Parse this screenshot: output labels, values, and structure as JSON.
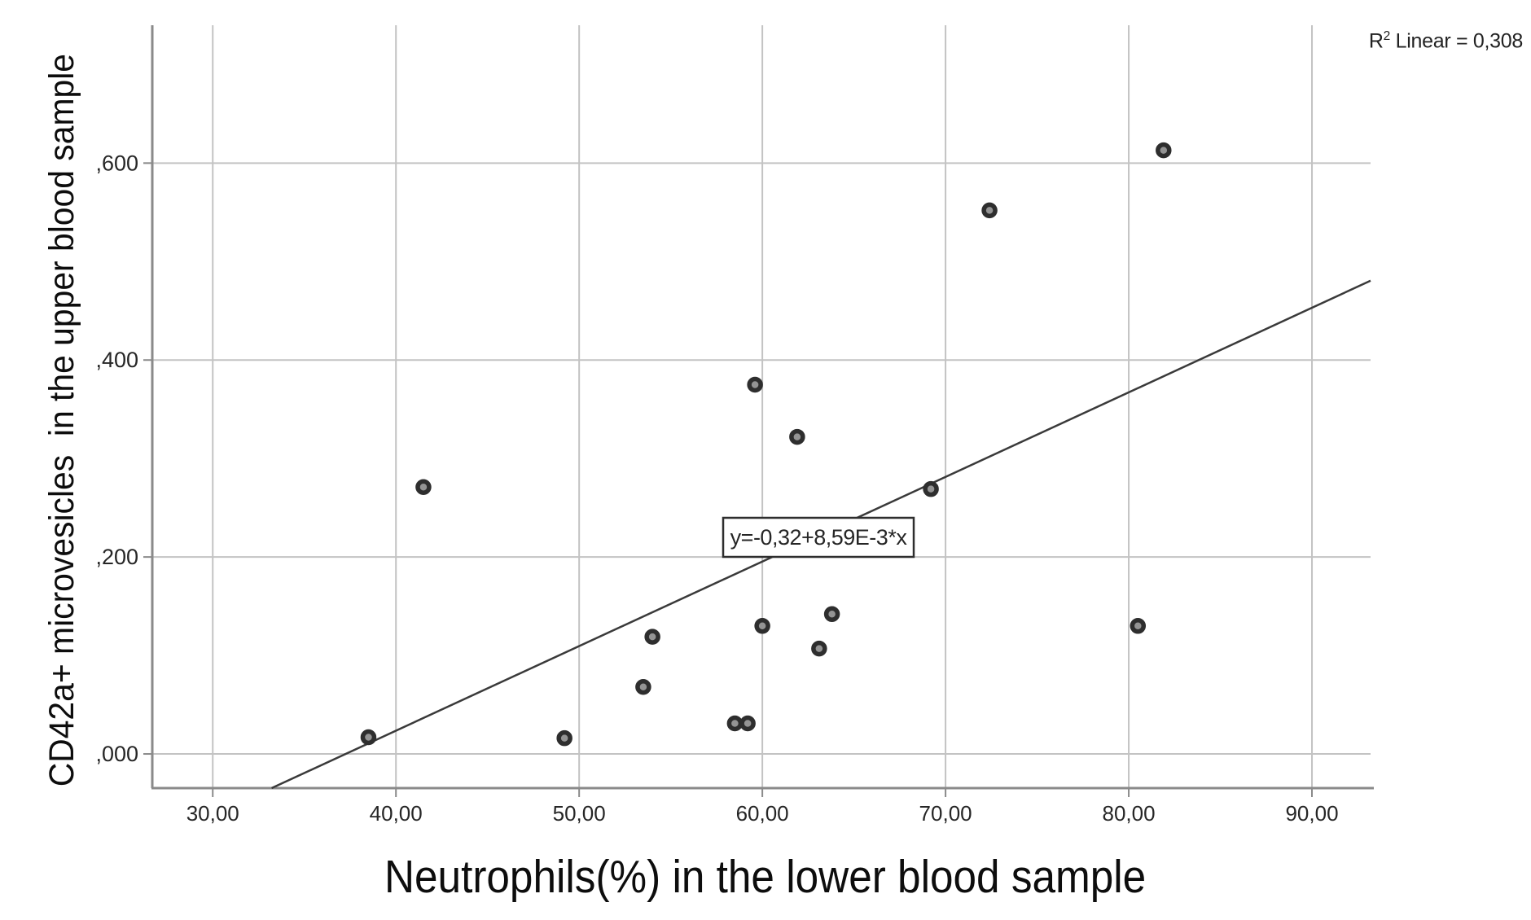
{
  "chart_data": {
    "type": "scatter",
    "title": "",
    "xlabel": "Neutrophils(%) in the lower blood sample",
    "ylabel": "CD42a+ microvesicles  in the upper blood sample",
    "x_ticks": [
      30,
      40,
      50,
      60,
      70,
      80,
      90
    ],
    "x_tick_labels": [
      "30,00",
      "40,00",
      "50,00",
      "60,00",
      "70,00",
      "80,00",
      "90,00"
    ],
    "y_ticks": [
      0.0,
      0.2,
      0.4,
      0.6
    ],
    "y_tick_labels": [
      ",000",
      ",200",
      ",400",
      ",600"
    ],
    "xlim": [
      26.7,
      93.2
    ],
    "ylim": [
      -0.0347,
      0.74
    ],
    "grid": true,
    "legend": "none",
    "points": [
      {
        "x": 38.5,
        "y": 0.017
      },
      {
        "x": 41.5,
        "y": 0.271
      },
      {
        "x": 49.2,
        "y": 0.016
      },
      {
        "x": 53.5,
        "y": 0.068
      },
      {
        "x": 54.0,
        "y": 0.119
      },
      {
        "x": 58.5,
        "y": 0.031
      },
      {
        "x": 59.2,
        "y": 0.031
      },
      {
        "x": 59.6,
        "y": 0.375
      },
      {
        "x": 60.0,
        "y": 0.13
      },
      {
        "x": 61.9,
        "y": 0.322
      },
      {
        "x": 63.1,
        "y": 0.107
      },
      {
        "x": 63.8,
        "y": 0.142
      },
      {
        "x": 69.2,
        "y": 0.269
      },
      {
        "x": 72.4,
        "y": 0.552
      },
      {
        "x": 80.5,
        "y": 0.13
      },
      {
        "x": 81.9,
        "y": 0.613
      }
    ],
    "regression": {
      "equation_label": "y=-0,32+8,59E-3*x",
      "intercept": -0.32,
      "slope": 0.00859
    },
    "r2": {
      "prefix": "R",
      "sup": "2",
      "rest": " Linear = 0,308"
    }
  },
  "colors": {
    "background": "#ffffff",
    "grid": "#c3c3c3",
    "axis": "#8a8a8a",
    "text": "#262626",
    "point_fill": "#949494",
    "point_stroke": "#2e2e2e",
    "regression_line": "#3a3a3a"
  }
}
